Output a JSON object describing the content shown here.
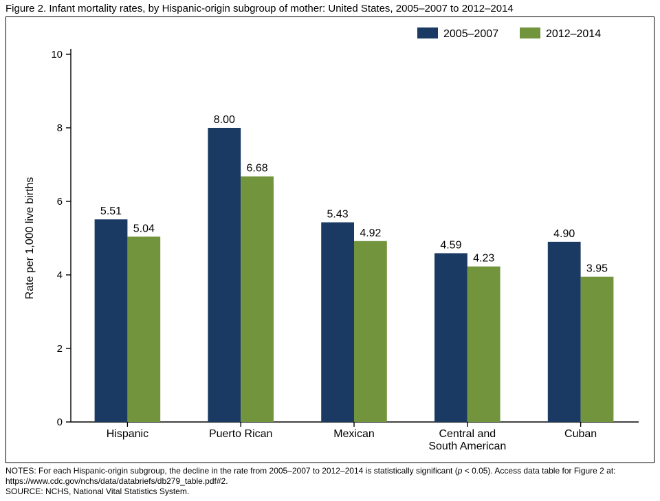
{
  "title": "Figure 2. Infant mortality rates, by Hispanic-origin subgroup of mother: United States, 2005–2007 to 2012–2014",
  "chart": {
    "type": "bar",
    "ylabel": "Rate per 1,000 live births",
    "ylim": [
      0,
      10
    ],
    "ytick_step": 2,
    "yticks": [
      0,
      2,
      4,
      6,
      8,
      10
    ],
    "categories": [
      "Hispanic",
      "Puerto Rican",
      "Mexican",
      "Central and\nSouth American",
      "Cuban"
    ],
    "series": [
      {
        "name": "2005–2007",
        "color": "#1a3a63",
        "values": [
          5.51,
          8.0,
          5.43,
          4.59,
          4.9
        ]
      },
      {
        "name": "2012–2014",
        "color": "#72943d",
        "values": [
          5.04,
          6.68,
          4.92,
          4.23,
          3.95
        ]
      }
    ],
    "value_labels": [
      [
        "5.51",
        "8.00",
        "5.43",
        "4.59",
        "4.90"
      ],
      [
        "5.04",
        "6.68",
        "4.92",
        "4.23",
        "3.95"
      ]
    ],
    "background_color": "#ffffff",
    "border_color": "#000000",
    "axis_color": "#000000",
    "tick_fontsize": 15,
    "label_fontsize": 16,
    "value_fontsize": 16,
    "bar_group_width": 0.58,
    "legend_position": "top-right"
  },
  "notes_html": "NOTES: For each Hispanic-origin subgroup, the decline in the rate from 2005–2007 to 2012–2014 is statistically significant (<span class=\"i\">p</span> < 0.05). Access data table for Figure 2 at: https://www.cdc.gov/nchs/data/databriefs/db279_table.pdf#2.<br>SOURCE: NCHS, National Vital Statistics System."
}
